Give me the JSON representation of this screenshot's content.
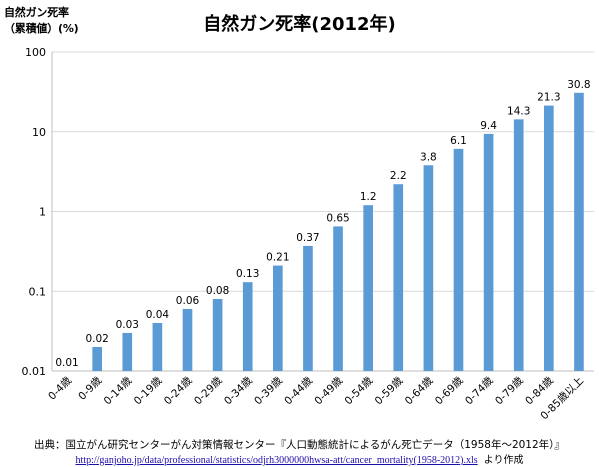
{
  "chart_data": {
    "type": "bar",
    "title": "自然ガン死率(2012年)",
    "ylabel_line1": "自然ガン死率",
    "ylabel_line2": "（累積値）(%)",
    "yscale": "log",
    "ylim": [
      0.01,
      100
    ],
    "yticks": [
      "100",
      "10",
      "1",
      "0.1",
      "0.01"
    ],
    "grid": true,
    "bar_color": "#5b9bd5",
    "categories": [
      "0-4歳",
      "0-9歳",
      "0-14歳",
      "0-19歳",
      "0-24歳",
      "0-29歳",
      "0-34歳",
      "0-39歳",
      "0-44歳",
      "0-49歳",
      "0-54歳",
      "0-59歳",
      "0-64歳",
      "0-69歳",
      "0-74歳",
      "0-79歳",
      "0-84歳",
      "0-85歳以上"
    ],
    "values": [
      0.01,
      0.02,
      0.03,
      0.04,
      0.06,
      0.08,
      0.13,
      0.21,
      0.37,
      0.65,
      1.2,
      2.2,
      3.8,
      6.1,
      9.4,
      14.3,
      21.3,
      30.8
    ],
    "data_labels": [
      "0.01",
      "0.02",
      "0.03",
      "0.04",
      "0.06",
      "0.08",
      "0.13",
      "0.21",
      "0.37",
      "0.65",
      "1.2",
      "2.2",
      "3.8",
      "6.1",
      "9.4",
      "14.3",
      "21.3",
      "30.8"
    ]
  },
  "footer": {
    "source_text": "出典：国立がん研究センターがん対策情報センター『人口動態統計によるがん死亡データ（1958年～2012年）』",
    "source_url": "http://ganjoho.jp/data/professional/statistics/odjrh3000000hwsa-att/cancer_mortality(1958-2012).xls",
    "source_suffix": "より作成"
  }
}
